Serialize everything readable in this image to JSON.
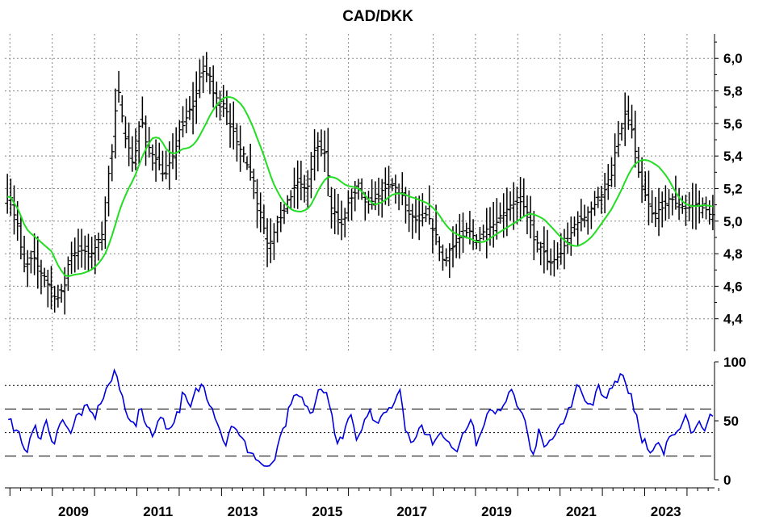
{
  "chart_data": [
    {
      "type": "ohlc",
      "title": "CAD/DKK",
      "overlay_name": "",
      "colors": {
        "bars": "#000000",
        "moving_average": "#22dd22",
        "grid": "#888888"
      },
      "ylim": [
        4.2,
        6.15
      ],
      "y_ticks": [
        4.4,
        4.6,
        4.8,
        5.0,
        5.2,
        5.4,
        5.6,
        5.8,
        6.0
      ],
      "y_tick_labels": [
        "4,4",
        "4,6",
        "4,8",
        "5,0",
        "5,2",
        "5,4",
        "5,6",
        "5,8",
        "6,0"
      ],
      "grid": true,
      "x_labels": [
        "2009",
        "2011",
        "2013",
        "2015",
        "2017",
        "2019",
        "2021",
        "2023"
      ],
      "anchors": [
        [
          2008.0,
          5.15
        ],
        [
          2008.15,
          5.0
        ],
        [
          2008.35,
          4.72
        ],
        [
          2008.55,
          4.78
        ],
        [
          2008.75,
          4.68
        ],
        [
          2008.95,
          4.6
        ],
        [
          2009.1,
          4.52
        ],
        [
          2009.25,
          4.58
        ],
        [
          2009.45,
          4.8
        ],
        [
          2009.7,
          4.82
        ],
        [
          2009.9,
          4.8
        ],
        [
          2010.2,
          4.92
        ],
        [
          2010.4,
          5.42
        ],
        [
          2010.55,
          5.8
        ],
        [
          2010.75,
          5.5
        ],
        [
          2010.9,
          5.36
        ],
        [
          2011.1,
          5.62
        ],
        [
          2011.25,
          5.46
        ],
        [
          2011.45,
          5.38
        ],
        [
          2011.65,
          5.28
        ],
        [
          2011.85,
          5.4
        ],
        [
          2012.05,
          5.58
        ],
        [
          2012.3,
          5.7
        ],
        [
          2012.55,
          5.92
        ],
        [
          2012.7,
          5.9
        ],
        [
          2012.85,
          5.76
        ],
        [
          2013.05,
          5.72
        ],
        [
          2013.25,
          5.56
        ],
        [
          2013.45,
          5.44
        ],
        [
          2013.7,
          5.3
        ],
        [
          2013.9,
          5.06
        ],
        [
          2014.1,
          4.86
        ],
        [
          2014.4,
          5.02
        ],
        [
          2014.6,
          5.14
        ],
        [
          2014.8,
          5.24
        ],
        [
          2015.0,
          5.2
        ],
        [
          2015.25,
          5.46
        ],
        [
          2015.45,
          5.42
        ],
        [
          2015.6,
          5.08
        ],
        [
          2015.85,
          4.98
        ],
        [
          2016.05,
          5.14
        ],
        [
          2016.25,
          5.2
        ],
        [
          2016.45,
          5.1
        ],
        [
          2016.65,
          5.14
        ],
        [
          2016.85,
          5.2
        ],
        [
          2017.05,
          5.22
        ],
        [
          2017.25,
          5.16
        ],
        [
          2017.45,
          5.04
        ],
        [
          2017.65,
          5.0
        ],
        [
          2017.85,
          5.04
        ],
        [
          2018.05,
          4.92
        ],
        [
          2018.25,
          4.76
        ],
        [
          2018.45,
          4.84
        ],
        [
          2018.65,
          4.9
        ],
        [
          2018.85,
          4.94
        ],
        [
          2019.05,
          4.88
        ],
        [
          2019.25,
          4.95
        ],
        [
          2019.45,
          4.98
        ],
        [
          2019.65,
          5.05
        ],
        [
          2019.85,
          5.1
        ],
        [
          2020.05,
          5.12
        ],
        [
          2020.25,
          5.05
        ],
        [
          2020.4,
          4.88
        ],
        [
          2020.55,
          4.84
        ],
        [
          2020.75,
          4.74
        ],
        [
          2020.95,
          4.78
        ],
        [
          2021.15,
          4.86
        ],
        [
          2021.35,
          4.98
        ],
        [
          2021.55,
          5.02
        ],
        [
          2021.75,
          5.08
        ],
        [
          2021.95,
          5.16
        ],
        [
          2022.15,
          5.22
        ],
        [
          2022.35,
          5.46
        ],
        [
          2022.55,
          5.66
        ],
        [
          2022.7,
          5.56
        ],
        [
          2022.85,
          5.3
        ],
        [
          2023.0,
          5.16
        ],
        [
          2023.2,
          5.04
        ],
        [
          2023.4,
          5.08
        ],
        [
          2023.6,
          5.14
        ],
        [
          2023.8,
          5.1
        ],
        [
          2024.0,
          5.08
        ],
        [
          2024.2,
          5.1
        ],
        [
          2024.4,
          5.08
        ],
        [
          2024.55,
          5.04
        ]
      ]
    },
    {
      "type": "line",
      "series_name": "",
      "color": "#0000dd",
      "ylim": [
        0,
        100
      ],
      "y_ticks": [
        0,
        50,
        100
      ],
      "y_tick_labels": [
        "0",
        "50",
        "100"
      ],
      "reference_lines": [
        20,
        40,
        60,
        80
      ],
      "anchors": [
        [
          2008.0,
          50
        ],
        [
          2008.2,
          38
        ],
        [
          2008.35,
          22
        ],
        [
          2008.55,
          45
        ],
        [
          2008.7,
          35
        ],
        [
          2008.85,
          48
        ],
        [
          2009.0,
          30
        ],
        [
          2009.15,
          46
        ],
        [
          2009.3,
          50
        ],
        [
          2009.45,
          40
        ],
        [
          2009.6,
          55
        ],
        [
          2009.8,
          60
        ],
        [
          2010.0,
          54
        ],
        [
          2010.2,
          70
        ],
        [
          2010.35,
          82
        ],
        [
          2010.5,
          90
        ],
        [
          2010.65,
          70
        ],
        [
          2010.8,
          55
        ],
        [
          2010.95,
          45
        ],
        [
          2011.1,
          60
        ],
        [
          2011.25,
          45
        ],
        [
          2011.4,
          40
        ],
        [
          2011.6,
          55
        ],
        [
          2011.75,
          42
        ],
        [
          2011.95,
          55
        ],
        [
          2012.1,
          72
        ],
        [
          2012.25,
          60
        ],
        [
          2012.4,
          75
        ],
        [
          2012.55,
          80
        ],
        [
          2012.75,
          65
        ],
        [
          2012.95,
          45
        ],
        [
          2013.1,
          30
        ],
        [
          2013.25,
          48
        ],
        [
          2013.45,
          35
        ],
        [
          2013.65,
          25
        ],
        [
          2013.9,
          15
        ],
        [
          2014.1,
          8
        ],
        [
          2014.25,
          18
        ],
        [
          2014.45,
          40
        ],
        [
          2014.6,
          58
        ],
        [
          2014.75,
          72
        ],
        [
          2014.95,
          66
        ],
        [
          2015.15,
          55
        ],
        [
          2015.3,
          75
        ],
        [
          2015.45,
          78
        ],
        [
          2015.6,
          55
        ],
        [
          2015.75,
          30
        ],
        [
          2015.9,
          40
        ],
        [
          2016.05,
          55
        ],
        [
          2016.2,
          30
        ],
        [
          2016.35,
          48
        ],
        [
          2016.5,
          58
        ],
        [
          2016.65,
          50
        ],
        [
          2016.85,
          58
        ],
        [
          2017.05,
          65
        ],
        [
          2017.2,
          75
        ],
        [
          2017.35,
          45
        ],
        [
          2017.5,
          30
        ],
        [
          2017.7,
          48
        ],
        [
          2017.85,
          40
        ],
        [
          2018.05,
          30
        ],
        [
          2018.2,
          40
        ],
        [
          2018.4,
          30
        ],
        [
          2018.55,
          25
        ],
        [
          2018.75,
          45
        ],
        [
          2018.9,
          50
        ],
        [
          2019.05,
          30
        ],
        [
          2019.2,
          50
        ],
        [
          2019.35,
          58
        ],
        [
          2019.5,
          55
        ],
        [
          2019.65,
          65
        ],
        [
          2019.85,
          78
        ],
        [
          2020.05,
          62
        ],
        [
          2020.2,
          45
        ],
        [
          2020.35,
          20
        ],
        [
          2020.5,
          40
        ],
        [
          2020.65,
          25
        ],
        [
          2020.85,
          38
        ],
        [
          2021.05,
          50
        ],
        [
          2021.25,
          60
        ],
        [
          2021.4,
          78
        ],
        [
          2021.55,
          72
        ],
        [
          2021.75,
          60
        ],
        [
          2021.9,
          78
        ],
        [
          2022.05,
          68
        ],
        [
          2022.25,
          82
        ],
        [
          2022.45,
          90
        ],
        [
          2022.65,
          75
        ],
        [
          2022.8,
          55
        ],
        [
          2022.95,
          35
        ],
        [
          2023.15,
          20
        ],
        [
          2023.3,
          30
        ],
        [
          2023.45,
          22
        ],
        [
          2023.6,
          38
        ],
        [
          2023.8,
          45
        ],
        [
          2023.95,
          55
        ],
        [
          2024.1,
          42
        ],
        [
          2024.25,
          50
        ],
        [
          2024.4,
          38
        ],
        [
          2024.55,
          52
        ]
      ]
    }
  ]
}
